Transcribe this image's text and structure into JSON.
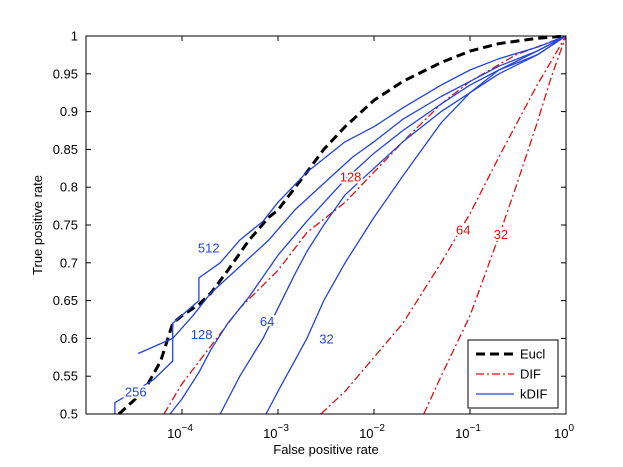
{
  "chart_data": {
    "type": "line",
    "title": "",
    "xlabel": "False positive rate",
    "ylabel": "True positive rate",
    "xscale": "log",
    "xlim": [
      1e-05,
      1
    ],
    "ylim": [
      0.5,
      1
    ],
    "grid": false,
    "legend_position": "bottom-right",
    "x_tick_values": [
      0.0001,
      0.001,
      0.01,
      0.1,
      1
    ],
    "x_tick_bases": [
      "10",
      "10",
      "10",
      "10",
      "10"
    ],
    "x_tick_exponents": [
      "−4",
      "−3",
      "−2",
      "−1",
      "0"
    ],
    "y_ticks": [
      "0.5",
      "0.55",
      "0.6",
      "0.65",
      "0.7",
      "0.75",
      "0.8",
      "0.85",
      "0.9",
      "0.95",
      "1"
    ],
    "y_tick_values": [
      0.5,
      0.55,
      0.6,
      0.65,
      0.7,
      0.75,
      0.8,
      0.85,
      0.9,
      0.95,
      1
    ],
    "legend": [
      {
        "label": "Eucl",
        "color": "#000000",
        "style": "dashed"
      },
      {
        "label": "DIF",
        "color": "#dd1111",
        "style": "dashdot"
      },
      {
        "label": "kDIF",
        "color": "#2244dd",
        "style": "solid"
      }
    ],
    "series": [
      {
        "name": "Eucl",
        "group": "Eucl",
        "color": "#000000",
        "style": "dashed",
        "x": [
          2.2e-05,
          4e-05,
          6e-05,
          8e-05,
          0.0001,
          0.00015,
          0.0002,
          0.0003,
          0.0005,
          0.0008,
          0.001,
          0.002,
          0.003,
          0.005,
          0.01,
          0.02,
          0.05,
          0.1,
          0.2,
          0.5,
          1
        ],
        "y": [
          0.5,
          0.53,
          0.57,
          0.62,
          0.63,
          0.645,
          0.66,
          0.69,
          0.73,
          0.76,
          0.77,
          0.82,
          0.85,
          0.88,
          0.915,
          0.94,
          0.965,
          0.98,
          0.99,
          0.997,
          1
        ]
      },
      {
        "name": "DIF-128",
        "group": "DIF",
        "color": "#dd1111",
        "style": "dashdot",
        "x": [
          6.5e-05,
          0.0001,
          0.0002,
          0.0004,
          0.001,
          0.002,
          0.005,
          0.01,
          0.02,
          0.05,
          0.1,
          0.3,
          1
        ],
        "y": [
          0.5,
          0.54,
          0.59,
          0.64,
          0.69,
          0.74,
          0.78,
          0.82,
          0.86,
          0.91,
          0.94,
          0.975,
          1
        ]
      },
      {
        "name": "DIF-64",
        "group": "DIF",
        "color": "#dd1111",
        "style": "dashdot",
        "x": [
          0.0028,
          0.005,
          0.01,
          0.02,
          0.05,
          0.1,
          0.2,
          0.5,
          1
        ],
        "y": [
          0.5,
          0.53,
          0.575,
          0.62,
          0.7,
          0.765,
          0.84,
          0.935,
          1
        ]
      },
      {
        "name": "DIF-32",
        "group": "DIF",
        "color": "#dd1111",
        "style": "dashdot",
        "x": [
          0.033,
          0.05,
          0.1,
          0.2,
          0.3,
          0.5,
          0.7,
          1
        ],
        "y": [
          0.5,
          0.55,
          0.63,
          0.735,
          0.8,
          0.885,
          0.945,
          1
        ]
      },
      {
        "name": "kDIF-512",
        "group": "kDIF",
        "color": "#2244dd",
        "style": "solid",
        "x": [
          3.5e-05,
          8e-05,
          8e-05,
          0.00015,
          0.00015,
          0.00025,
          0.0004,
          0.0007,
          0.001,
          0.002,
          0.005,
          0.01,
          0.02,
          0.05,
          0.1,
          0.2,
          0.5,
          1
        ],
        "y": [
          0.58,
          0.6,
          0.62,
          0.65,
          0.68,
          0.7,
          0.73,
          0.755,
          0.78,
          0.82,
          0.86,
          0.88,
          0.905,
          0.935,
          0.955,
          0.97,
          0.985,
          1
        ]
      },
      {
        "name": "kDIF-256",
        "group": "kDIF",
        "color": "#2244dd",
        "style": "solid",
        "x": [
          2e-05,
          2e-05,
          5e-05,
          8e-05,
          8e-05,
          0.00013,
          0.0002,
          0.0004,
          0.0008,
          0.0015,
          0.003,
          0.006,
          0.01,
          0.02,
          0.05,
          0.1,
          0.2,
          0.5,
          1
        ],
        "y": [
          0.5,
          0.515,
          0.545,
          0.57,
          0.6,
          0.63,
          0.66,
          0.695,
          0.73,
          0.77,
          0.805,
          0.84,
          0.86,
          0.89,
          0.92,
          0.94,
          0.96,
          0.98,
          1
        ]
      },
      {
        "name": "kDIF-128",
        "group": "kDIF",
        "color": "#2244dd",
        "style": "solid",
        "x": [
          7.5e-05,
          0.0001,
          0.00015,
          0.0002,
          0.0003,
          0.0005,
          0.001,
          0.002,
          0.005,
          0.01,
          0.02,
          0.05,
          0.1,
          0.2,
          0.5,
          1
        ],
        "y": [
          0.5,
          0.52,
          0.555,
          0.585,
          0.62,
          0.655,
          0.71,
          0.755,
          0.81,
          0.845,
          0.875,
          0.91,
          0.935,
          0.955,
          0.975,
          1
        ]
      },
      {
        "name": "kDIF-64",
        "group": "kDIF",
        "color": "#2244dd",
        "style": "solid",
        "x": [
          0.00025,
          0.0004,
          0.0007,
          0.001,
          0.0015,
          0.002,
          0.003,
          0.005,
          0.01,
          0.02,
          0.05,
          0.1,
          0.2,
          0.5,
          1
        ],
        "y": [
          0.5,
          0.55,
          0.6,
          0.64,
          0.685,
          0.715,
          0.75,
          0.79,
          0.825,
          0.86,
          0.9,
          0.925,
          0.95,
          0.975,
          1
        ]
      },
      {
        "name": "kDIF-32",
        "group": "kDIF",
        "color": "#2244dd",
        "style": "solid",
        "x": [
          0.00075,
          0.001,
          0.002,
          0.003,
          0.005,
          0.01,
          0.02,
          0.05,
          0.1,
          0.2,
          0.5,
          1
        ],
        "y": [
          0.5,
          0.53,
          0.6,
          0.65,
          0.7,
          0.76,
          0.815,
          0.885,
          0.925,
          0.955,
          0.98,
          1
        ]
      }
    ],
    "annotations": [
      {
        "text": "512",
        "x": 0.00019,
        "y": 0.718,
        "color": "#2244dd"
      },
      {
        "text": "256",
        "x": 3.3e-05,
        "y": 0.528,
        "color": "#2244dd"
      },
      {
        "text": "128",
        "x": 0.00016,
        "y": 0.604,
        "color": "#2244dd"
      },
      {
        "text": "64",
        "x": 0.00077,
        "y": 0.621,
        "color": "#2244dd"
      },
      {
        "text": "32",
        "x": 0.0032,
        "y": 0.598,
        "color": "#2244dd"
      },
      {
        "text": "128",
        "x": 0.0057,
        "y": 0.812,
        "color": "#dd1111"
      },
      {
        "text": "64",
        "x": 0.085,
        "y": 0.742,
        "color": "#dd1111"
      },
      {
        "text": "32",
        "x": 0.21,
        "y": 0.736,
        "color": "#dd1111"
      }
    ]
  }
}
